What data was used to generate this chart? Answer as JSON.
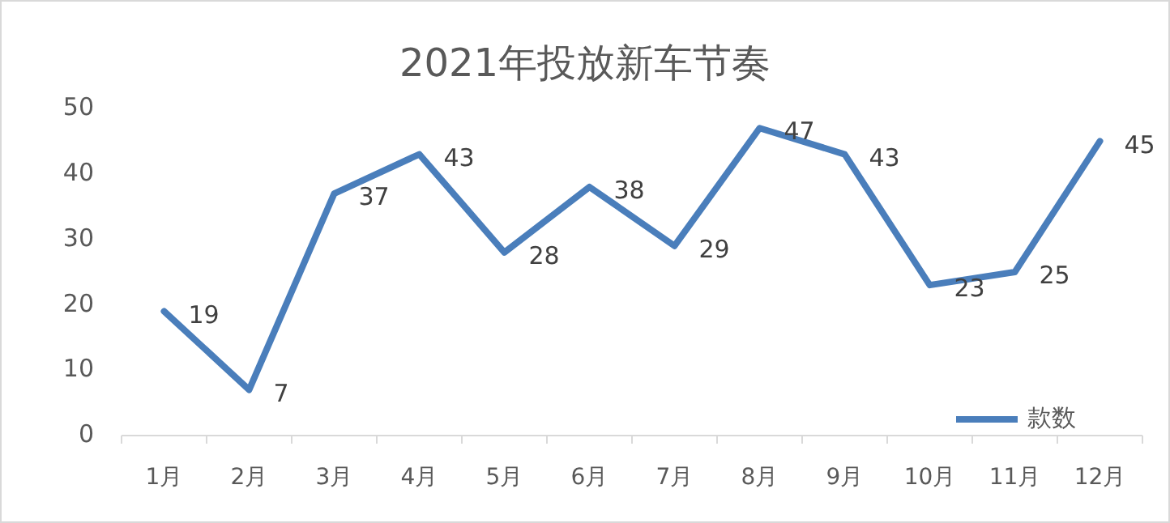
{
  "chart_data": {
    "type": "line",
    "title": "2021年投放新车节奏",
    "categories": [
      "1月",
      "2月",
      "3月",
      "4月",
      "5月",
      "6月",
      "7月",
      "8月",
      "9月",
      "10月",
      "11月",
      "12月"
    ],
    "series": [
      {
        "name": "款数",
        "color": "#4a7ebb",
        "values": [
          19,
          7,
          37,
          43,
          28,
          38,
          29,
          47,
          43,
          23,
          25,
          45
        ]
      }
    ],
    "ylim": [
      0,
      50
    ],
    "yticks": [
      0,
      10,
      20,
      30,
      40,
      50
    ],
    "data_labels": true,
    "legend": "bottom right"
  }
}
